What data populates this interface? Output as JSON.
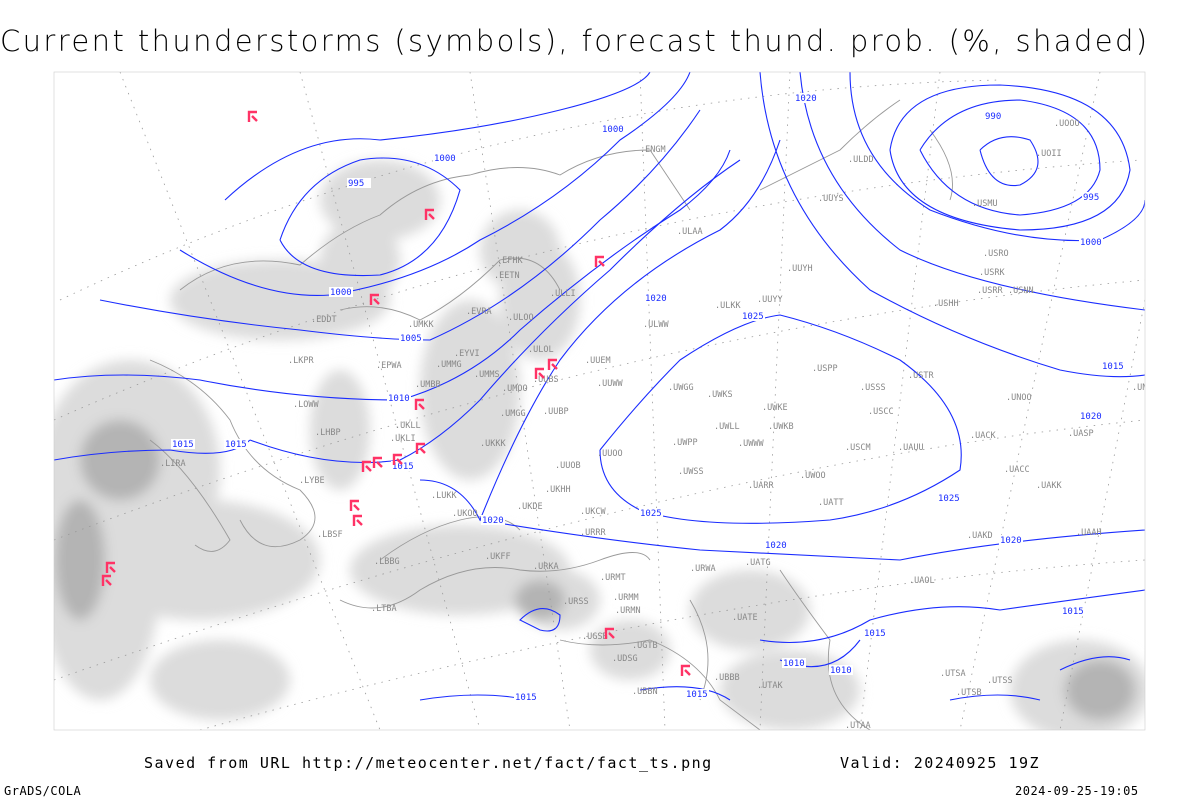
{
  "title": "Current thunderstorms (symbols), forecast thund. prob. (%, shaded)",
  "footer": {
    "source": "Saved from URL http://meteocenter.net/fact/fact_ts.png",
    "valid": "Valid: 20240925 19Z",
    "software": "GrADS/COLA",
    "generated": "2024-09-25-19:05"
  },
  "colors": {
    "isobar": "#1a2cff",
    "storm_symbol": "#ff3366",
    "shading_light": "#dcdcdc",
    "shading_dark": "#b4b4b4",
    "coastline": "#999999"
  },
  "isobar_labels": [
    "990",
    "995",
    "995",
    "1000",
    "1000",
    "1000",
    "1000",
    "1005",
    "1010",
    "1015",
    "1015",
    "1015",
    "1015",
    "1015",
    "1015",
    "1010",
    "1010",
    "1015",
    "1020",
    "1020",
    "1020",
    "1020",
    "1020",
    "1020",
    "1025",
    "1025",
    "1025",
    "1015"
  ],
  "stations": [
    "ULAA",
    "ULLI",
    "ULOO",
    "ULOL",
    "UUEM",
    "UUWW",
    "UUBS",
    "UMOO",
    "UMMS",
    "UMGG",
    "UUBP",
    "UKKK",
    "UUOB",
    "UUOO",
    "UKHH",
    "UKDE",
    "UKCW",
    "URRR",
    "UKFF",
    "URKA",
    "URMT",
    "URMM",
    "URMN",
    "URSS",
    "UGSB",
    "UGTB",
    "UDSG",
    "UBBN",
    "UBBB",
    "URWA",
    "UATG",
    "UATE",
    "UWGG",
    "UWKS",
    "UWKE",
    "UWKB",
    "UWPP",
    "UWWW",
    "UWLL",
    "UWSS",
    "UARR",
    "UWOO",
    "UATT",
    "UUYY",
    "ULKK",
    "ULWW",
    "UUYH",
    "UUYS",
    "ULDD",
    "USSS",
    "USCC",
    "USTR",
    "USPP",
    "USCM",
    "UAUU",
    "UACC",
    "UAKK",
    "UAKD",
    "UAAH",
    "UAOL",
    "UASP",
    "UACK",
    "UNOO",
    "UNBB",
    "USNN",
    "USRR",
    "USRK",
    "USRO",
    "USHH",
    "USMU",
    "UOOO",
    "UOII",
    "EVRA",
    "EYVI",
    "EPWA",
    "EDDT",
    "LKPR",
    "LOWW",
    "LHBP",
    "LIRA",
    "LYBE",
    "LBSF",
    "LBBG",
    "LTBA",
    "UKLL",
    "UKLI",
    "UMBB",
    "UMMG",
    "UKOO",
    "LUKK",
    "EFHK",
    "EETN",
    "ENGM",
    "UMKK",
    "UTAK",
    "UTAA",
    "UTSS",
    "UTSA",
    "UTSB"
  ],
  "storm_count": 17
}
